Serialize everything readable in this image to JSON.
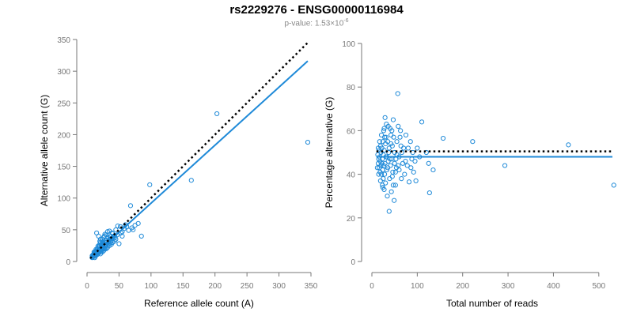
{
  "title": "rs2229276 - ENSG00000116984",
  "subtitle": {
    "prefix": "p-value: ",
    "mantissa": "1.53×10",
    "exponent": "-6"
  },
  "colors": {
    "points": "#1f8ad8",
    "fit": "#1f8ad8",
    "expected": "#000000",
    "axis": "#777777"
  },
  "chart_data": [
    {
      "type": "scatter",
      "xlabel": "Reference allele count (A)",
      "ylabel": "Alternative allele count (G)",
      "xlim": [
        0,
        350
      ],
      "ylim": [
        0,
        350
      ],
      "xticks": [
        0,
        50,
        100,
        150,
        200,
        250,
        300,
        350
      ],
      "yticks": [
        0,
        50,
        100,
        150,
        200,
        250,
        300,
        350
      ],
      "fit_line": {
        "x": [
          5,
          345
        ],
        "y": [
          5,
          316
        ],
        "style": "solid"
      },
      "expected_line": {
        "x": [
          5,
          345
        ],
        "y": [
          5,
          345
        ],
        "style": "dotted"
      },
      "points": [
        [
          345,
          188
        ],
        [
          203,
          233
        ],
        [
          163,
          128
        ],
        [
          98,
          121
        ],
        [
          85,
          40
        ],
        [
          68,
          88
        ],
        [
          80,
          60
        ],
        [
          72,
          50
        ],
        [
          60,
          58
        ],
        [
          55,
          47
        ],
        [
          52,
          55
        ],
        [
          48,
          56
        ],
        [
          45,
          50
        ],
        [
          42,
          40
        ],
        [
          40,
          44
        ],
        [
          38,
          33
        ],
        [
          36,
          35
        ],
        [
          35,
          48
        ],
        [
          33,
          38
        ],
        [
          32,
          47
        ],
        [
          31,
          30
        ],
        [
          30,
          42
        ],
        [
          29,
          25
        ],
        [
          28,
          33
        ],
        [
          28,
          43
        ],
        [
          27,
          21
        ],
        [
          26,
          28
        ],
        [
          26,
          38
        ],
        [
          25,
          20
        ],
        [
          25,
          30
        ],
        [
          24,
          25
        ],
        [
          24,
          35
        ],
        [
          23,
          18
        ],
        [
          23,
          28
        ],
        [
          22,
          15
        ],
        [
          22,
          22
        ],
        [
          21,
          30
        ],
        [
          21,
          12
        ],
        [
          20,
          18
        ],
        [
          20,
          25
        ],
        [
          19,
          20
        ],
        [
          19,
          14
        ],
        [
          18,
          16
        ],
        [
          18,
          22
        ],
        [
          17,
          18
        ],
        [
          17,
          12
        ],
        [
          16,
          15
        ],
        [
          16,
          20
        ],
        [
          15,
          13
        ],
        [
          15,
          17
        ],
        [
          14,
          10
        ],
        [
          14,
          16
        ],
        [
          13,
          12
        ],
        [
          13,
          8
        ],
        [
          12,
          14
        ],
        [
          12,
          10
        ],
        [
          11,
          9
        ],
        [
          11,
          12
        ],
        [
          10,
          8
        ],
        [
          10,
          11
        ],
        [
          9,
          7
        ],
        [
          9,
          10
        ],
        [
          8,
          6
        ],
        [
          8,
          9
        ],
        [
          15,
          45
        ],
        [
          18,
          40
        ],
        [
          21,
          35
        ],
        [
          30,
          20
        ],
        [
          35,
          25
        ],
        [
          40,
          30
        ],
        [
          45,
          35
        ],
        [
          50,
          28
        ],
        [
          55,
          40
        ],
        [
          27,
          40
        ],
        [
          33,
          27
        ],
        [
          37,
          40
        ],
        [
          43,
          32
        ],
        [
          47,
          42
        ],
        [
          20,
          32
        ],
        [
          26,
          17
        ],
        [
          22,
          27
        ],
        [
          28,
          20
        ],
        [
          32,
          22
        ],
        [
          34,
          31
        ],
        [
          38,
          27
        ],
        [
          31,
          36
        ],
        [
          24,
          15
        ],
        [
          19,
          26
        ],
        [
          17,
          24
        ],
        [
          14,
          19
        ],
        [
          13,
          16
        ],
        [
          11,
          15
        ],
        [
          23,
          23
        ],
        [
          29,
          30
        ],
        [
          36,
          29
        ],
        [
          41,
          36
        ],
        [
          12,
          6
        ],
        [
          16,
          11
        ],
        [
          21,
          17
        ],
        [
          25,
          24
        ],
        [
          30,
          26
        ],
        [
          39,
          45
        ],
        [
          44,
          38
        ],
        [
          53,
          45
        ],
        [
          58,
          52
        ],
        [
          62,
          55
        ],
        [
          65,
          49
        ],
        [
          70,
          53
        ],
        [
          75,
          57
        ],
        [
          28,
          27
        ],
        [
          34,
          34
        ],
        [
          39,
          37
        ]
      ]
    },
    {
      "type": "scatter",
      "xlabel": "Total number of reads",
      "ylabel": "Percentage alternative (G)",
      "xlim": [
        0,
        530
      ],
      "ylim": [
        0,
        100
      ],
      "xticks": [
        0,
        100,
        200,
        300,
        400,
        500
      ],
      "yticks": [
        0,
        20,
        40,
        60,
        80,
        100
      ],
      "fit_line": {
        "x": [
          10,
          530
        ],
        "y": [
          48,
          48
        ],
        "style": "solid"
      },
      "expected_line": {
        "x": [
          10,
          530
        ],
        "y": [
          50.5,
          50.5
        ],
        "style": "dotted"
      },
      "points": [
        [
          533,
          35
        ],
        [
          433,
          53.5
        ],
        [
          293,
          44
        ],
        [
          222,
          55
        ],
        [
          157,
          56.5
        ],
        [
          135,
          42
        ],
        [
          127,
          31.5
        ],
        [
          125,
          45
        ],
        [
          120,
          50
        ],
        [
          110,
          64
        ],
        [
          105,
          48
        ],
        [
          100,
          52
        ],
        [
          97,
          37
        ],
        [
          92,
          41
        ],
        [
          88,
          47
        ],
        [
          85,
          55
        ],
        [
          82,
          36.5
        ],
        [
          78,
          44
        ],
        [
          75,
          58
        ],
        [
          72,
          40
        ],
        [
          70,
          52
        ],
        [
          68,
          45
        ],
        [
          65,
          38
        ],
        [
          63,
          60
        ],
        [
          60,
          48
        ],
        [
          58,
          62
        ],
        [
          57,
          77
        ],
        [
          55,
          55
        ],
        [
          54,
          43
        ],
        [
          52,
          35
        ],
        [
          50,
          50
        ],
        [
          49,
          28
        ],
        [
          48,
          57
        ],
        [
          47,
          65
        ],
        [
          46,
          41
        ],
        [
          45,
          53
        ],
        [
          44,
          47
        ],
        [
          43,
          32
        ],
        [
          42,
          58
        ],
        [
          41,
          44
        ],
        [
          40,
          61
        ],
        [
          39,
          38
        ],
        [
          38,
          23
        ],
        [
          37,
          50
        ],
        [
          36,
          46
        ],
        [
          35,
          55
        ],
        [
          34,
          30
        ],
        [
          33,
          42
        ],
        [
          32,
          63
        ],
        [
          31,
          48
        ],
        [
          30,
          36
        ],
        [
          30,
          54
        ],
        [
          29,
          45
        ],
        [
          29,
          66
        ],
        [
          28,
          40
        ],
        [
          28,
          57
        ],
        [
          27,
          33
        ],
        [
          27,
          51
        ],
        [
          26,
          44
        ],
        [
          26,
          60
        ],
        [
          25,
          38
        ],
        [
          25,
          49
        ],
        [
          24,
          55
        ],
        [
          24,
          42
        ],
        [
          23,
          47
        ],
        [
          23,
          35
        ],
        [
          22,
          52
        ],
        [
          22,
          45
        ],
        [
          21,
          58
        ],
        [
          21,
          40
        ],
        [
          20,
          50
        ],
        [
          20,
          44
        ],
        [
          19,
          37
        ],
        [
          19,
          53
        ],
        [
          18,
          46
        ],
        [
          18,
          41
        ],
        [
          17,
          55
        ],
        [
          17,
          48
        ],
        [
          16,
          43
        ],
        [
          16,
          51
        ],
        [
          15,
          47
        ],
        [
          15,
          40
        ],
        [
          14,
          52
        ],
        [
          14,
          45
        ],
        [
          13,
          49
        ],
        [
          12,
          43
        ],
        [
          60,
          42
        ],
        [
          66,
          50
        ],
        [
          74,
          46
        ],
        [
          80,
          52
        ],
        [
          86,
          43
        ],
        [
          90,
          50
        ],
        [
          95,
          46
        ],
        [
          53,
          47
        ],
        [
          58,
          44
        ],
        [
          64,
          53
        ],
        [
          35,
          43
        ],
        [
          40,
          47
        ],
        [
          45,
          39
        ],
        [
          50,
          45
        ],
        [
          55,
          49
        ],
        [
          31,
          57
        ],
        [
          38,
          52
        ],
        [
          44,
          60
        ],
        [
          36,
          62
        ],
        [
          42,
          54
        ],
        [
          47,
          35
        ],
        [
          33,
          48
        ],
        [
          27,
          61
        ],
        [
          24,
          34
        ],
        [
          52,
          41
        ],
        [
          62,
          57
        ]
      ]
    }
  ]
}
